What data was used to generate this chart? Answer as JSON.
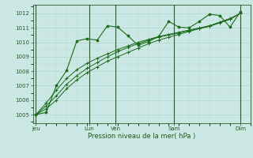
{
  "xlabel": "Pression niveau de la mer( hPa )",
  "bg_color": "#cce8e4",
  "grid_color_major": "#a8d0c8",
  "grid_color_minor": "#b8dcd8",
  "line_color": "#1a6b1a",
  "ylim": [
    1004.4,
    1012.6
  ],
  "yticks": [
    1005,
    1006,
    1007,
    1008,
    1009,
    1010,
    1011,
    1012
  ],
  "day_labels": [
    "Jeu",
    "Lun",
    "Ven",
    "Sam",
    "Dim"
  ],
  "day_x": [
    0.0,
    5.2,
    7.8,
    13.5,
    20.0
  ],
  "xlim": [
    -0.3,
    21.0
  ],
  "series_smooth1_x": [
    0,
    1,
    2,
    3,
    4,
    5,
    6,
    7,
    8,
    9,
    10,
    11,
    12,
    13,
    14,
    15,
    16,
    17,
    18,
    19,
    20
  ],
  "series_smooth1_y": [
    1005.0,
    1005.4,
    1006.0,
    1006.8,
    1007.4,
    1007.9,
    1008.3,
    1008.7,
    1009.0,
    1009.3,
    1009.6,
    1009.9,
    1010.15,
    1010.35,
    1010.55,
    1010.75,
    1010.95,
    1011.15,
    1011.4,
    1011.65,
    1012.0
  ],
  "series_smooth2_x": [
    0,
    1,
    2,
    3,
    4,
    5,
    6,
    7,
    8,
    9,
    10,
    11,
    12,
    13,
    14,
    15,
    16,
    17,
    18,
    19,
    20
  ],
  "series_smooth2_y": [
    1005.0,
    1005.6,
    1006.3,
    1007.1,
    1007.7,
    1008.2,
    1008.6,
    1009.0,
    1009.35,
    1009.65,
    1009.9,
    1010.15,
    1010.35,
    1010.5,
    1010.65,
    1010.8,
    1010.95,
    1011.1,
    1011.35,
    1011.6,
    1012.0
  ],
  "series_smooth3_x": [
    0,
    1,
    2,
    3,
    4,
    5,
    6,
    7,
    8,
    9,
    10,
    11,
    12,
    13,
    14,
    15,
    16,
    17,
    18,
    19,
    20
  ],
  "series_smooth3_y": [
    1005.0,
    1005.8,
    1006.7,
    1007.5,
    1008.1,
    1008.55,
    1008.9,
    1009.2,
    1009.5,
    1009.75,
    1010.0,
    1010.2,
    1010.4,
    1010.55,
    1010.7,
    1010.85,
    1011.0,
    1011.15,
    1011.35,
    1011.6,
    1012.0
  ],
  "series_jagged_x": [
    0,
    1,
    2,
    3,
    4,
    5,
    6,
    7,
    8,
    9,
    10,
    11,
    12,
    13,
    14,
    15,
    16,
    17,
    18,
    19,
    20
  ],
  "series_jagged_y": [
    1005.0,
    1005.15,
    1007.0,
    1008.05,
    1010.1,
    1010.25,
    1010.15,
    1011.15,
    1011.05,
    1010.45,
    1009.8,
    1010.05,
    1010.4,
    1011.45,
    1011.05,
    1011.0,
    1011.45,
    1011.95,
    1011.85,
    1011.05,
    1012.1
  ],
  "vline_color": "#2a5a2a",
  "tick_color": "#2a5a2a",
  "label_color": "#1a5a1a"
}
